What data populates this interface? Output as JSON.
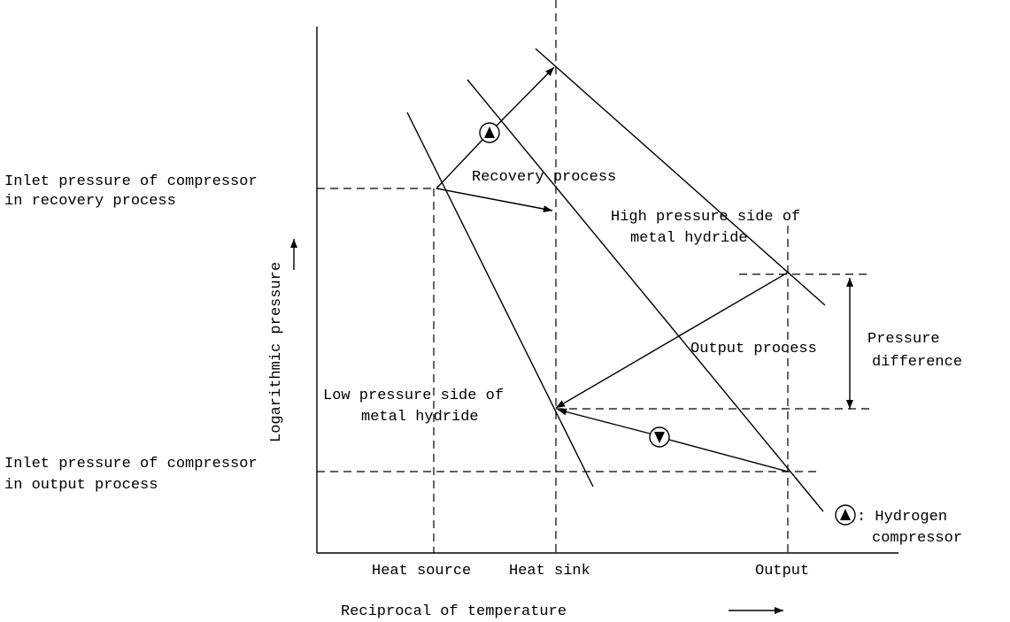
{
  "inlet_recovery": [
    "Inlet pressure of compressor",
    "in recovery process"
  ],
  "recovery_process": "Recovery process",
  "high_pressure_side": [
    "High pressure side of",
    "metal hydride"
  ],
  "y_axis_label": "Logarithmic pressure",
  "output_process": "Output process",
  "pressure_difference": [
    "Pressure",
    "difference"
  ],
  "low_pressure_side": [
    "Low pressure side of",
    "metal hydride"
  ],
  "inlet_output": [
    "Inlet pressure of compressor",
    "in output process"
  ],
  "legend": [
    ": Hydrogen",
    "compressor"
  ],
  "x_labels": [
    "Heat source",
    "Heat sink",
    "Output"
  ],
  "x_axis_label": "Reciprocal of temperature"
}
